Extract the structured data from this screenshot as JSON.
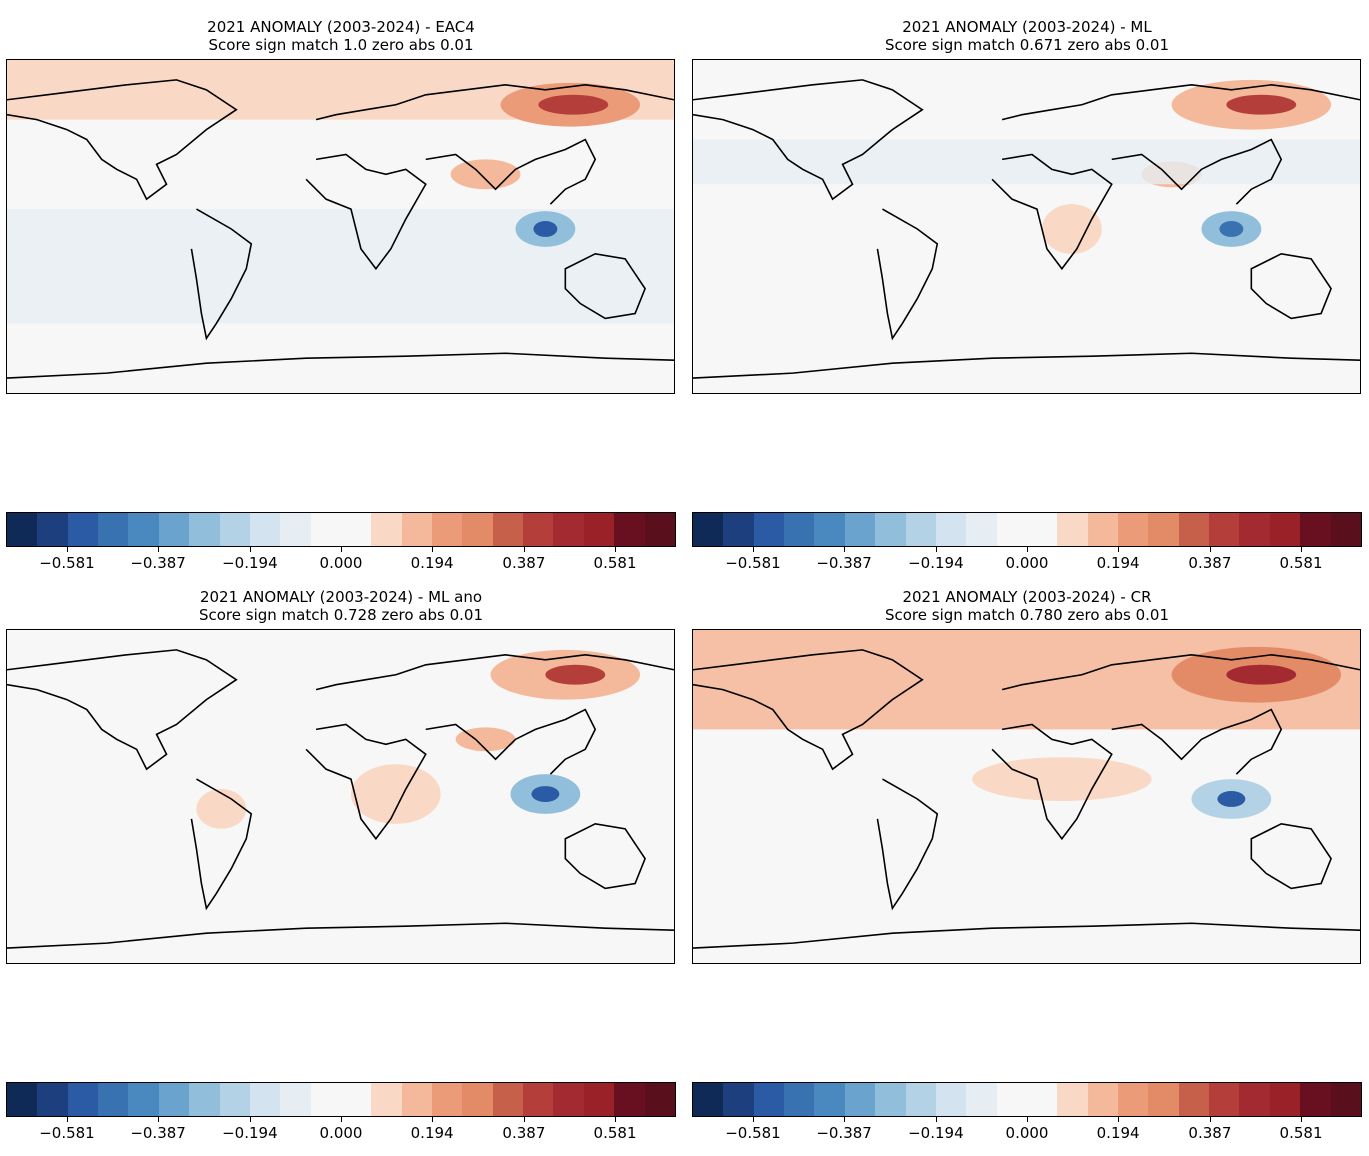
{
  "panels": [
    {
      "title_line1": "2021 ANOMALY (2003-2024)  - EAC4",
      "title_line2": "Score sign match 1.0 zero abs 0.01"
    },
    {
      "title_line1": "2021 ANOMALY (2003-2024)  - ML",
      "title_line2": "Score sign match 0.671 zero abs 0.01"
    },
    {
      "title_line1": "2021 ANOMALY (2003-2024)  - ML ano",
      "title_line2": "Score sign match 0.728 zero abs 0.01"
    },
    {
      "title_line1": "2021 ANOMALY (2003-2024)  - CR",
      "title_line2": "Score sign match 0.780 zero abs 0.01"
    }
  ],
  "colorbar": {
    "tick_labels": [
      "−0.581",
      "−0.387",
      "−0.194",
      "0.000",
      "0.194",
      "0.387",
      "0.581"
    ],
    "colors": [
      "#0f2a57",
      "#1d3f7d",
      "#2a5ba4",
      "#3972b0",
      "#4a88c0",
      "#6aa3cd",
      "#91bedb",
      "#b3d2e6",
      "#d3e3ef",
      "#e6edf3",
      "#f7f7f7",
      "#f7f7f7",
      "#f9d8c6",
      "#f4b99b",
      "#eb9b78",
      "#e38b67",
      "#c7604b",
      "#b43e3a",
      "#a22a30",
      "#9b2129",
      "#68101f",
      "#5a0f1c"
    ]
  }
}
